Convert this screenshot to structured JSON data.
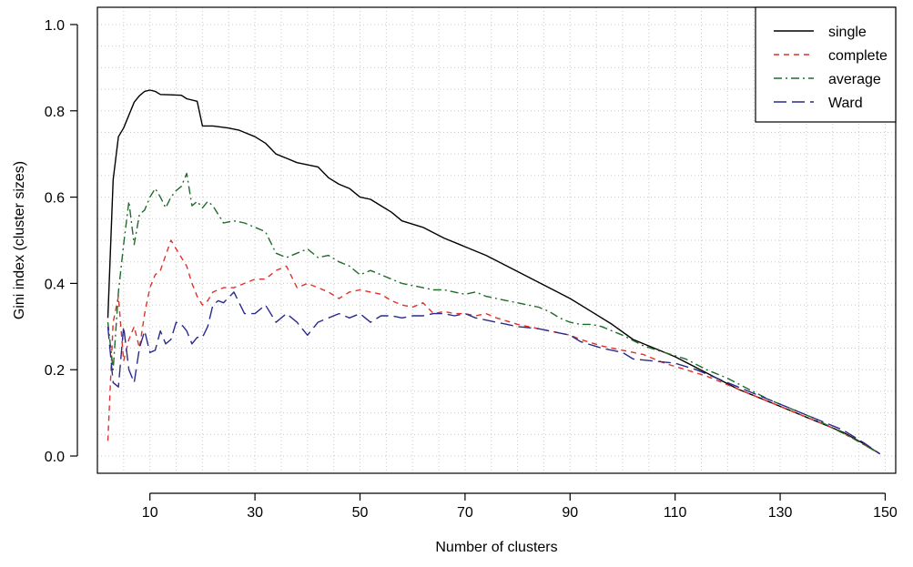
{
  "chart_data": {
    "type": "line",
    "title": "",
    "xlabel": "Number of clusters",
    "ylabel": "Gini index (cluster sizes)",
    "xlim": [
      0,
      152
    ],
    "ylim": [
      -0.04,
      1.04
    ],
    "x_ticks": [
      10,
      30,
      50,
      70,
      90,
      110,
      130,
      150
    ],
    "y_ticks": [
      0.0,
      0.2,
      0.4,
      0.6,
      0.8,
      1.0
    ],
    "y_tick_labels": [
      "0.0",
      "0.2",
      "0.4",
      "0.6",
      "0.8",
      "1.0"
    ],
    "grid": true,
    "legend_position": "top-right",
    "series": [
      {
        "name": "single",
        "color": "#000000",
        "dash": "solid",
        "points": [
          [
            2,
            0.32
          ],
          [
            3,
            0.64
          ],
          [
            4,
            0.74
          ],
          [
            5,
            0.76
          ],
          [
            6,
            0.79
          ],
          [
            7,
            0.82
          ],
          [
            8,
            0.835
          ],
          [
            9,
            0.845
          ],
          [
            10,
            0.848
          ],
          [
            11,
            0.845
          ],
          [
            12,
            0.838
          ],
          [
            14,
            0.837
          ],
          [
            16,
            0.836
          ],
          [
            17,
            0.828
          ],
          [
            19,
            0.822
          ],
          [
            20,
            0.765
          ],
          [
            22,
            0.765
          ],
          [
            25,
            0.76
          ],
          [
            27,
            0.755
          ],
          [
            28,
            0.75
          ],
          [
            30,
            0.74
          ],
          [
            32,
            0.725
          ],
          [
            34,
            0.7
          ],
          [
            36,
            0.69
          ],
          [
            38,
            0.68
          ],
          [
            42,
            0.67
          ],
          [
            44,
            0.645
          ],
          [
            46,
            0.63
          ],
          [
            48,
            0.62
          ],
          [
            50,
            0.6
          ],
          [
            52,
            0.595
          ],
          [
            54,
            0.58
          ],
          [
            56,
            0.565
          ],
          [
            58,
            0.545
          ],
          [
            62,
            0.53
          ],
          [
            66,
            0.505
          ],
          [
            70,
            0.485
          ],
          [
            74,
            0.465
          ],
          [
            78,
            0.44
          ],
          [
            82,
            0.415
          ],
          [
            86,
            0.39
          ],
          [
            90,
            0.365
          ],
          [
            94,
            0.335
          ],
          [
            98,
            0.305
          ],
          [
            102,
            0.27
          ],
          [
            106,
            0.25
          ],
          [
            110,
            0.23
          ],
          [
            114,
            0.205
          ],
          [
            118,
            0.18
          ],
          [
            122,
            0.155
          ],
          [
            126,
            0.135
          ],
          [
            130,
            0.115
          ],
          [
            134,
            0.095
          ],
          [
            138,
            0.075
          ],
          [
            142,
            0.055
          ],
          [
            146,
            0.028
          ],
          [
            149,
            0.005
          ]
        ]
      },
      {
        "name": "complete",
        "color": "#e0302a",
        "dash": "dashed",
        "points": [
          [
            2,
            0.035
          ],
          [
            3,
            0.31
          ],
          [
            4,
            0.37
          ],
          [
            5,
            0.22
          ],
          [
            6,
            0.27
          ],
          [
            7,
            0.3
          ],
          [
            8,
            0.25
          ],
          [
            9,
            0.33
          ],
          [
            10,
            0.39
          ],
          [
            11,
            0.42
          ],
          [
            12,
            0.43
          ],
          [
            14,
            0.5
          ],
          [
            15,
            0.48
          ],
          [
            16,
            0.46
          ],
          [
            17,
            0.44
          ],
          [
            18,
            0.4
          ],
          [
            19,
            0.37
          ],
          [
            20,
            0.35
          ],
          [
            21,
            0.36
          ],
          [
            22,
            0.38
          ],
          [
            24,
            0.39
          ],
          [
            26,
            0.39
          ],
          [
            28,
            0.4
          ],
          [
            30,
            0.41
          ],
          [
            32,
            0.41
          ],
          [
            34,
            0.43
          ],
          [
            36,
            0.44
          ],
          [
            38,
            0.39
          ],
          [
            40,
            0.4
          ],
          [
            42,
            0.39
          ],
          [
            44,
            0.38
          ],
          [
            46,
            0.365
          ],
          [
            48,
            0.38
          ],
          [
            50,
            0.385
          ],
          [
            52,
            0.38
          ],
          [
            54,
            0.375
          ],
          [
            56,
            0.36
          ],
          [
            58,
            0.35
          ],
          [
            60,
            0.345
          ],
          [
            62,
            0.355
          ],
          [
            64,
            0.33
          ],
          [
            66,
            0.335
          ],
          [
            68,
            0.33
          ],
          [
            70,
            0.33
          ],
          [
            72,
            0.325
          ],
          [
            74,
            0.33
          ],
          [
            76,
            0.32
          ],
          [
            80,
            0.305
          ],
          [
            84,
            0.295
          ],
          [
            88,
            0.285
          ],
          [
            90,
            0.28
          ],
          [
            92,
            0.27
          ],
          [
            96,
            0.255
          ],
          [
            100,
            0.245
          ],
          [
            104,
            0.235
          ],
          [
            108,
            0.215
          ],
          [
            112,
            0.2
          ],
          [
            116,
            0.185
          ],
          [
            120,
            0.165
          ],
          [
            124,
            0.145
          ],
          [
            128,
            0.125
          ],
          [
            132,
            0.105
          ],
          [
            136,
            0.085
          ],
          [
            140,
            0.065
          ],
          [
            144,
            0.04
          ],
          [
            149,
            0.005
          ]
        ]
      },
      {
        "name": "average",
        "color": "#1f6b2a",
        "dash": "dashdot",
        "points": [
          [
            2,
            0.31
          ],
          [
            3,
            0.2
          ],
          [
            4,
            0.38
          ],
          [
            5,
            0.49
          ],
          [
            6,
            0.59
          ],
          [
            7,
            0.49
          ],
          [
            8,
            0.56
          ],
          [
            9,
            0.57
          ],
          [
            10,
            0.6
          ],
          [
            11,
            0.62
          ],
          [
            12,
            0.6
          ],
          [
            13,
            0.575
          ],
          [
            14,
            0.6
          ],
          [
            15,
            0.615
          ],
          [
            16,
            0.625
          ],
          [
            17,
            0.655
          ],
          [
            18,
            0.58
          ],
          [
            19,
            0.59
          ],
          [
            20,
            0.575
          ],
          [
            21,
            0.59
          ],
          [
            22,
            0.58
          ],
          [
            24,
            0.54
          ],
          [
            26,
            0.545
          ],
          [
            28,
            0.54
          ],
          [
            30,
            0.53
          ],
          [
            32,
            0.52
          ],
          [
            34,
            0.47
          ],
          [
            36,
            0.46
          ],
          [
            38,
            0.47
          ],
          [
            40,
            0.48
          ],
          [
            42,
            0.46
          ],
          [
            44,
            0.465
          ],
          [
            46,
            0.45
          ],
          [
            48,
            0.44
          ],
          [
            50,
            0.42
          ],
          [
            52,
            0.43
          ],
          [
            54,
            0.42
          ],
          [
            56,
            0.41
          ],
          [
            58,
            0.4
          ],
          [
            60,
            0.395
          ],
          [
            62,
            0.39
          ],
          [
            64,
            0.385
          ],
          [
            66,
            0.385
          ],
          [
            68,
            0.38
          ],
          [
            70,
            0.375
          ],
          [
            72,
            0.38
          ],
          [
            74,
            0.37
          ],
          [
            76,
            0.365
          ],
          [
            78,
            0.36
          ],
          [
            80,
            0.355
          ],
          [
            82,
            0.35
          ],
          [
            84,
            0.345
          ],
          [
            86,
            0.335
          ],
          [
            88,
            0.32
          ],
          [
            90,
            0.31
          ],
          [
            92,
            0.305
          ],
          [
            94,
            0.305
          ],
          [
            96,
            0.3
          ],
          [
            98,
            0.29
          ],
          [
            100,
            0.28
          ],
          [
            104,
            0.255
          ],
          [
            108,
            0.24
          ],
          [
            112,
            0.225
          ],
          [
            116,
            0.2
          ],
          [
            120,
            0.18
          ],
          [
            124,
            0.155
          ],
          [
            128,
            0.13
          ],
          [
            132,
            0.11
          ],
          [
            136,
            0.09
          ],
          [
            140,
            0.065
          ],
          [
            144,
            0.04
          ],
          [
            149,
            0.005
          ]
        ]
      },
      {
        "name": "Ward",
        "color": "#2a2a8c",
        "dash": "longdash",
        "points": [
          [
            2,
            0.3
          ],
          [
            3,
            0.17
          ],
          [
            4,
            0.16
          ],
          [
            5,
            0.3
          ],
          [
            6,
            0.2
          ],
          [
            7,
            0.17
          ],
          [
            8,
            0.25
          ],
          [
            9,
            0.29
          ],
          [
            10,
            0.24
          ],
          [
            11,
            0.245
          ],
          [
            12,
            0.29
          ],
          [
            13,
            0.26
          ],
          [
            14,
            0.27
          ],
          [
            15,
            0.31
          ],
          [
            16,
            0.305
          ],
          [
            17,
            0.29
          ],
          [
            18,
            0.26
          ],
          [
            19,
            0.275
          ],
          [
            20,
            0.275
          ],
          [
            21,
            0.3
          ],
          [
            22,
            0.35
          ],
          [
            23,
            0.36
          ],
          [
            24,
            0.355
          ],
          [
            26,
            0.38
          ],
          [
            28,
            0.33
          ],
          [
            30,
            0.33
          ],
          [
            32,
            0.35
          ],
          [
            34,
            0.31
          ],
          [
            36,
            0.33
          ],
          [
            38,
            0.31
          ],
          [
            40,
            0.28
          ],
          [
            42,
            0.31
          ],
          [
            44,
            0.32
          ],
          [
            46,
            0.33
          ],
          [
            48,
            0.32
          ],
          [
            50,
            0.33
          ],
          [
            52,
            0.31
          ],
          [
            54,
            0.325
          ],
          [
            56,
            0.325
          ],
          [
            58,
            0.32
          ],
          [
            60,
            0.325
          ],
          [
            62,
            0.325
          ],
          [
            64,
            0.33
          ],
          [
            66,
            0.33
          ],
          [
            68,
            0.325
          ],
          [
            70,
            0.33
          ],
          [
            72,
            0.32
          ],
          [
            74,
            0.315
          ],
          [
            76,
            0.31
          ],
          [
            80,
            0.3
          ],
          [
            84,
            0.295
          ],
          [
            88,
            0.285
          ],
          [
            90,
            0.28
          ],
          [
            92,
            0.265
          ],
          [
            96,
            0.25
          ],
          [
            100,
            0.24
          ],
          [
            102,
            0.225
          ],
          [
            106,
            0.22
          ],
          [
            110,
            0.215
          ],
          [
            114,
            0.2
          ],
          [
            118,
            0.18
          ],
          [
            122,
            0.16
          ],
          [
            126,
            0.14
          ],
          [
            130,
            0.12
          ],
          [
            134,
            0.1
          ],
          [
            138,
            0.08
          ],
          [
            142,
            0.06
          ],
          [
            146,
            0.03
          ],
          [
            149,
            0.005
          ]
        ]
      }
    ]
  }
}
